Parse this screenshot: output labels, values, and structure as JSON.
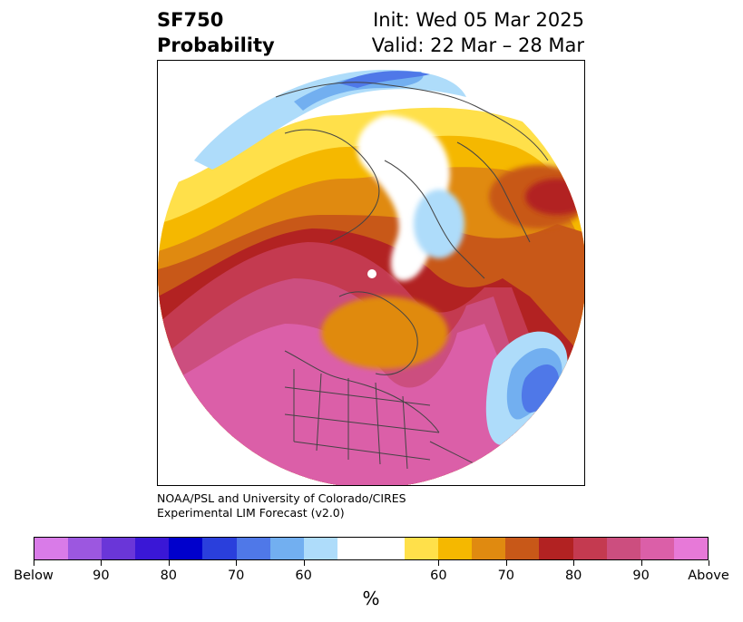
{
  "title": {
    "left_line1": "SF750",
    "left_line2": "Probability",
    "right_line1": "Init: Wed 05 Mar 2025",
    "right_line2": "Valid: 22 Mar – 28 Mar"
  },
  "credit": {
    "line1": "NOAA/PSL and University of Colorado/CIRES",
    "line2": "Experimental LIM Forecast (v2.0)"
  },
  "colorbar": {
    "unit": "%",
    "colors": [
      "#d97be8",
      "#9c57e0",
      "#6a36d8",
      "#3a17d6",
      "#0000cc",
      "#2a3fdc",
      "#4f78e8",
      "#72aff0",
      "#aedcfa",
      "#ffffff",
      "#ffffff",
      "#ffe04a",
      "#f5b800",
      "#e08a10",
      "#c85818",
      "#b22222",
      "#c43a50",
      "#cc4e7f",
      "#db5fa8",
      "#e779d8"
    ],
    "tick_labels": [
      "Below",
      "90",
      "80",
      "70",
      "60",
      "60",
      "70",
      "80",
      "90",
      "Above"
    ]
  }
}
